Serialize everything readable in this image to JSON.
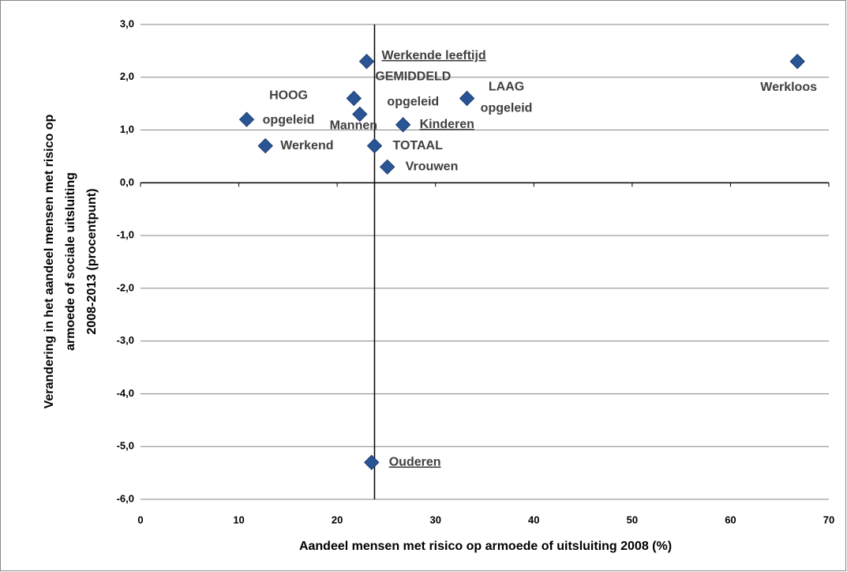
{
  "chart_data": {
    "type": "scatter",
    "x_label": "Aandeel mensen met risico op armoede of uitsluiting 2008 (%)",
    "y_label": [
      "Verandering in het aandeel mensen met risico op",
      "armoede of sociale uitsluiting",
      "2008-2013 (procentpunt)"
    ],
    "point_labels": [
      [
        "Werkende leeftijd"
      ],
      [
        "Werkloos"
      ],
      [
        "GEMIDDELD",
        "opgeleid"
      ],
      [
        "LAAG",
        "opgeleid"
      ],
      [
        "HOOG",
        "opgeleid"
      ],
      [
        "Mannen"
      ],
      [
        "Kinderen"
      ],
      [
        "Werkend"
      ],
      [
        "TOTAAL"
      ],
      [
        "Vrouwen"
      ],
      [
        "Ouderen"
      ]
    ],
    "underline": [
      true,
      false,
      false,
      false,
      false,
      false,
      true,
      false,
      false,
      false,
      true
    ],
    "x": [
      23.0,
      66.8,
      21.7,
      33.2,
      10.8,
      22.3,
      26.7,
      12.7,
      23.8,
      25.1,
      23.5
    ],
    "values": [
      2.3,
      2.3,
      1.6,
      1.6,
      1.2,
      1.3,
      1.1,
      0.7,
      0.7,
      0.3,
      -5.3
    ],
    "color": "#2a5595",
    "xlim": [
      0,
      70
    ],
    "xticks": [
      0,
      10,
      20,
      30,
      40,
      50,
      60,
      70
    ],
    "ylim": [
      -6,
      3
    ],
    "yticks": [
      {
        "value": -6,
        "label": "-6,0"
      },
      {
        "value": -5,
        "label": "-5,0"
      },
      {
        "value": -4,
        "label": "-4,0"
      },
      {
        "value": -3,
        "label": "-3,0"
      },
      {
        "value": -2,
        "label": "-2,0"
      },
      {
        "value": -1,
        "label": "-1,0"
      },
      {
        "value": 0,
        "label": "0,0"
      },
      {
        "value": 1,
        "label": "1,0"
      },
      {
        "value": 2,
        "label": "2,0"
      },
      {
        "value": 3,
        "label": "3,0"
      }
    ],
    "y_axis_crossing_x": 23.8,
    "grid": true
  }
}
